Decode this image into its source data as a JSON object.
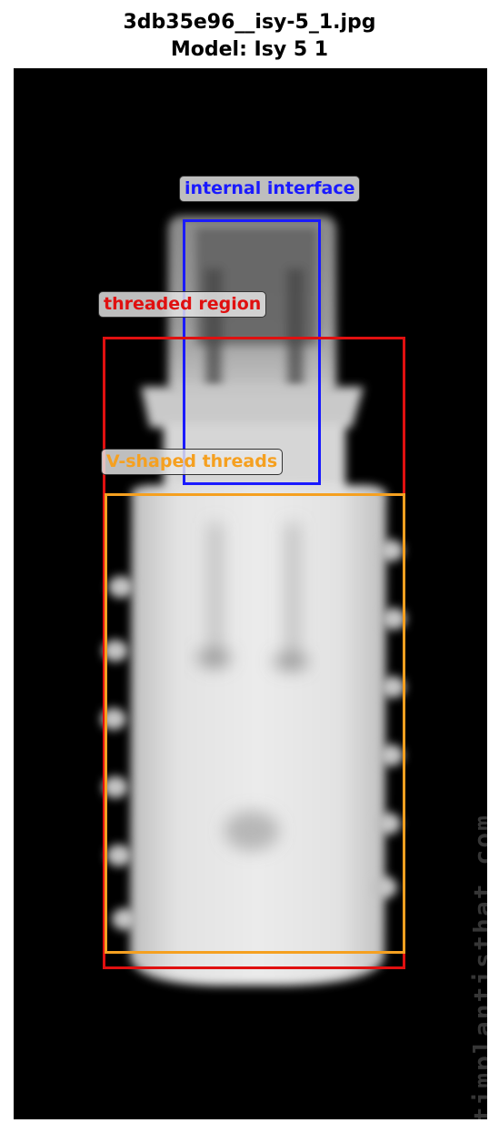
{
  "header": {
    "filename": "3db35e96__isy-5_1.jpg",
    "model": "Model: Isy 5 1"
  },
  "image": {
    "subject": "dental-implant-xray",
    "watermark": "whatimplantisthat.com"
  },
  "annotations": [
    {
      "label": "internal interface",
      "color": "#1a1aff"
    },
    {
      "label": "threaded region",
      "color": "#e01010"
    },
    {
      "label": "V-shaped threads",
      "color": "#f5a020"
    }
  ]
}
